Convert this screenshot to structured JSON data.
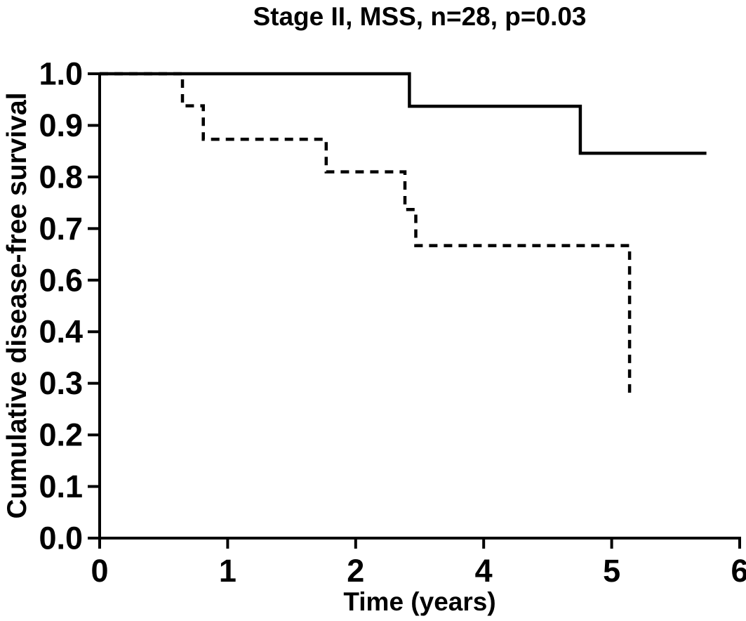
{
  "figure": {
    "background": "#ffffff",
    "ink_color": "#000000"
  },
  "chart_data": {
    "type": "line",
    "chart_style": "kaplan-meier-step",
    "title": "Stage II, MSS, n=28, p=0.03",
    "n": 28,
    "p_value": "0.03",
    "xlabel": "Time (years)",
    "ylabel": "Cumulative disease-free survival",
    "x_tick_labels": [
      "0",
      "1",
      "2",
      "4",
      "5",
      "6"
    ],
    "y_tick_labels_bottom_to_top": [
      "0.0",
      "0.1",
      "0.2",
      "0.3",
      "0.4",
      "0.6",
      "0.7",
      "0.8",
      "0.9",
      "1.0"
    ],
    "tick_label_note": "ticks are evenly spaced; printed labels omit 3 on the x axis and 0.5 on the y axis, exactly as in the source figure",
    "x_axis_range_tick_units": [
      0,
      5
    ],
    "y_axis_range_tick_units": [
      0,
      9
    ],
    "grid": false,
    "legend": false,
    "series": [
      {
        "name": "solid-line-group",
        "line_style": "solid",
        "event_times_years_as_printed": [
          2.83,
          4.76
        ],
        "survival_levels_as_printed": [
          1.0,
          0.94,
          0.85
        ],
        "curve_end_year_as_printed": 5.74,
        "steps_tick_units": [
          [
            0,
            9
          ],
          [
            2.42,
            9
          ],
          [
            2.42,
            8.37
          ],
          [
            3.755,
            8.37
          ],
          [
            3.755,
            7.46
          ],
          [
            4.74,
            7.46
          ]
        ]
      },
      {
        "name": "dashed-line-group",
        "line_style": "dashed",
        "event_times_years_as_printed": [
          0.65,
          0.81,
          1.77,
          2.77,
          2.94,
          5.14
        ],
        "survival_levels_as_printed": [
          1.0,
          0.94,
          0.87,
          0.81,
          0.74,
          0.67,
          0.28
        ],
        "curve_end_year_as_printed": 5.19,
        "steps_tick_units": [
          [
            0,
            9
          ],
          [
            0.647,
            9
          ],
          [
            0.647,
            8.38
          ],
          [
            0.81,
            8.38
          ],
          [
            0.81,
            7.73
          ],
          [
            1.77,
            7.73
          ],
          [
            1.77,
            7.1
          ],
          [
            2.385,
            7.1
          ],
          [
            2.385,
            6.37
          ],
          [
            2.47,
            6.37
          ],
          [
            2.47,
            5.67
          ],
          [
            4.14,
            5.67
          ],
          [
            4.14,
            2.85
          ],
          [
            4.19,
            2.85
          ]
        ]
      }
    ]
  }
}
